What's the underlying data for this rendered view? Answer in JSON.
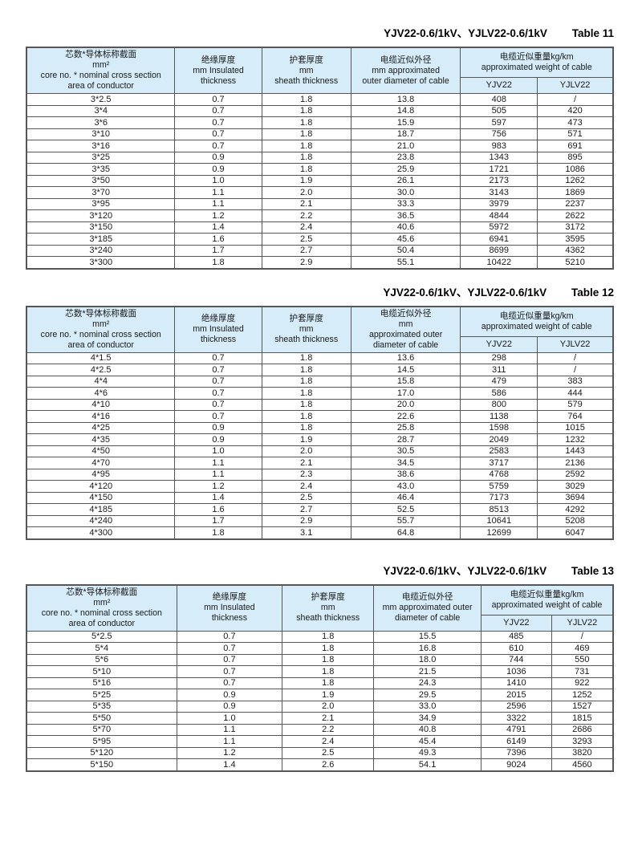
{
  "colors": {
    "header_bg": "#d6ecf8",
    "border": "#565656",
    "title_text": "#000000",
    "body_text": "#1a1a1a"
  },
  "tables": [
    {
      "title": "YJV22-0.6/1kV、YJLV22-0.6/1kV",
      "table_no": "Table 11",
      "headers": [
        [
          "芯数*导体标称截面",
          "mm²",
          "core no. * nominal cross section",
          "area of conductor"
        ],
        [
          "绝缘厚度",
          "mm Insulated",
          "thickness"
        ],
        [
          "护套厚度",
          "mm",
          "sheath thickness"
        ],
        [
          "电缆近似外径",
          "mm approximated",
          "outer diameter of cable"
        ],
        [
          "电缆近似重量kg/km",
          "approximated weight of cable"
        ]
      ],
      "subheaders": [
        "YJV22",
        "YJLV22"
      ],
      "rows": [
        [
          "3*2.5",
          "0.7",
          "1.8",
          "13.8",
          "408",
          "/"
        ],
        [
          "3*4",
          "0.7",
          "1.8",
          "14.8",
          "505",
          "420"
        ],
        [
          "3*6",
          "0.7",
          "1.8",
          "15.9",
          "597",
          "473"
        ],
        [
          "3*10",
          "0.7",
          "1.8",
          "18.7",
          "756",
          "571"
        ],
        [
          "3*16",
          "0.7",
          "1.8",
          "21.0",
          "983",
          "691"
        ],
        [
          "3*25",
          "0.9",
          "1.8",
          "23.8",
          "1343",
          "895"
        ],
        [
          "3*35",
          "0.9",
          "1.8",
          "25.9",
          "1721",
          "1086"
        ],
        [
          "3*50",
          "1.0",
          "1.9",
          "26.1",
          "2173",
          "1262"
        ],
        [
          "3*70",
          "1.1",
          "2.0",
          "30.0",
          "3143",
          "1869"
        ],
        [
          "3*95",
          "1.1",
          "2.1",
          "33.3",
          "3979",
          "2237"
        ],
        [
          "3*120",
          "1.2",
          "2.2",
          "36.5",
          "4844",
          "2622"
        ],
        [
          "3*150",
          "1.4",
          "2.4",
          "40.6",
          "5972",
          "3172"
        ],
        [
          "3*185",
          "1.6",
          "2.5",
          "45.6",
          "6941",
          "3595"
        ],
        [
          "3*240",
          "1.7",
          "2.7",
          "50.4",
          "8699",
          "4362"
        ],
        [
          "3*300",
          "1.8",
          "2.9",
          "55.1",
          "10422",
          "5210"
        ]
      ]
    },
    {
      "title": "YJV22-0.6/1kV、YJLV22-0.6/1kV",
      "table_no": "Table 12",
      "headers": [
        [
          "芯数*导体标称截面",
          "mm²",
          "core no. * nominal cross section",
          "area of conductor"
        ],
        [
          "绝缘厚度",
          "mm Insulated",
          "thickness"
        ],
        [
          "护套厚度",
          "mm",
          "sheath thickness"
        ],
        [
          "电缆近似外径",
          "mm",
          "approximated outer",
          "diameter of cable"
        ],
        [
          "电缆近似重量kg/km",
          "approximated weight of cable"
        ]
      ],
      "subheaders": [
        "YJV22",
        "YJLV22"
      ],
      "rows": [
        [
          "4*1.5",
          "0.7",
          "1.8",
          "13.6",
          "298",
          "/"
        ],
        [
          "4*2.5",
          "0.7",
          "1.8",
          "14.5",
          "311",
          "/"
        ],
        [
          "4*4",
          "0.7",
          "1.8",
          "15.8",
          "479",
          "383"
        ],
        [
          "4*6",
          "0.7",
          "1.8",
          "17.0",
          "586",
          "444"
        ],
        [
          "4*10",
          "0.7",
          "1.8",
          "20.0",
          "800",
          "579"
        ],
        [
          "4*16",
          "0.7",
          "1.8",
          "22.6",
          "1138",
          "764"
        ],
        [
          "4*25",
          "0.9",
          "1.8",
          "25.8",
          "1598",
          "1015"
        ],
        [
          "4*35",
          "0.9",
          "1.9",
          "28.7",
          "2049",
          "1232"
        ],
        [
          "4*50",
          "1.0",
          "2.0",
          "30.5",
          "2583",
          "1443"
        ],
        [
          "4*70",
          "1.1",
          "2.1",
          "34.5",
          "3717",
          "2136"
        ],
        [
          "4*95",
          "1.1",
          "2.3",
          "38.6",
          "4768",
          "2592"
        ],
        [
          "4*120",
          "1.2",
          "2.4",
          "43.0",
          "5759",
          "3029"
        ],
        [
          "4*150",
          "1.4",
          "2.5",
          "46.4",
          "7173",
          "3694"
        ],
        [
          "4*185",
          "1.6",
          "2.7",
          "52.5",
          "8513",
          "4292"
        ],
        [
          "4*240",
          "1.7",
          "2.9",
          "55.7",
          "10641",
          "5208"
        ],
        [
          "4*300",
          "1.8",
          "3.1",
          "64.8",
          "12699",
          "6047"
        ]
      ]
    },
    {
      "title": "YJV22-0.6/1kV、YJLV22-0.6/1kV",
      "table_no": "Table 13",
      "headers": [
        [
          "芯数*导体标称截面",
          "mm²",
          "core no. * nominal cross section",
          "area of conductor"
        ],
        [
          "绝缘厚度",
          "mm Insulated",
          "thickness"
        ],
        [
          "护套厚度",
          "mm",
          "sheath thickness"
        ],
        [
          "电缆近似外径",
          "mm approximated outer",
          "diameter of cable"
        ],
        [
          "电缆近似重量kg/km",
          "approximated weight of cable"
        ]
      ],
      "subheaders": [
        "YJV22",
        "YJLV22"
      ],
      "rows": [
        [
          "5*2.5",
          "0.7",
          "1.8",
          "15.5",
          "485",
          "/"
        ],
        [
          "5*4",
          "0.7",
          "1.8",
          "16.8",
          "610",
          "469"
        ],
        [
          "5*6",
          "0.7",
          "1.8",
          "18.0",
          "744",
          "550"
        ],
        [
          "5*10",
          "0.7",
          "1.8",
          "21.5",
          "1036",
          "731"
        ],
        [
          "5*16",
          "0.7",
          "1.8",
          "24.3",
          "1410",
          "922"
        ],
        [
          "5*25",
          "0.9",
          "1.9",
          "29.5",
          "2015",
          "1252"
        ],
        [
          "5*35",
          "0.9",
          "2.0",
          "33.0",
          "2596",
          "1527"
        ],
        [
          "5*50",
          "1.0",
          "2.1",
          "34.9",
          "3322",
          "1815"
        ],
        [
          "5*70",
          "1.1",
          "2.2",
          "40.8",
          "4791",
          "2686"
        ],
        [
          "5*95",
          "1.1",
          "2.4",
          "45.4",
          "6149",
          "3293"
        ],
        [
          "5*120",
          "1.2",
          "2.5",
          "49.3",
          "7396",
          "3820"
        ],
        [
          "5*150",
          "1.4",
          "2.6",
          "54.1",
          "9024",
          "4560"
        ]
      ]
    }
  ]
}
